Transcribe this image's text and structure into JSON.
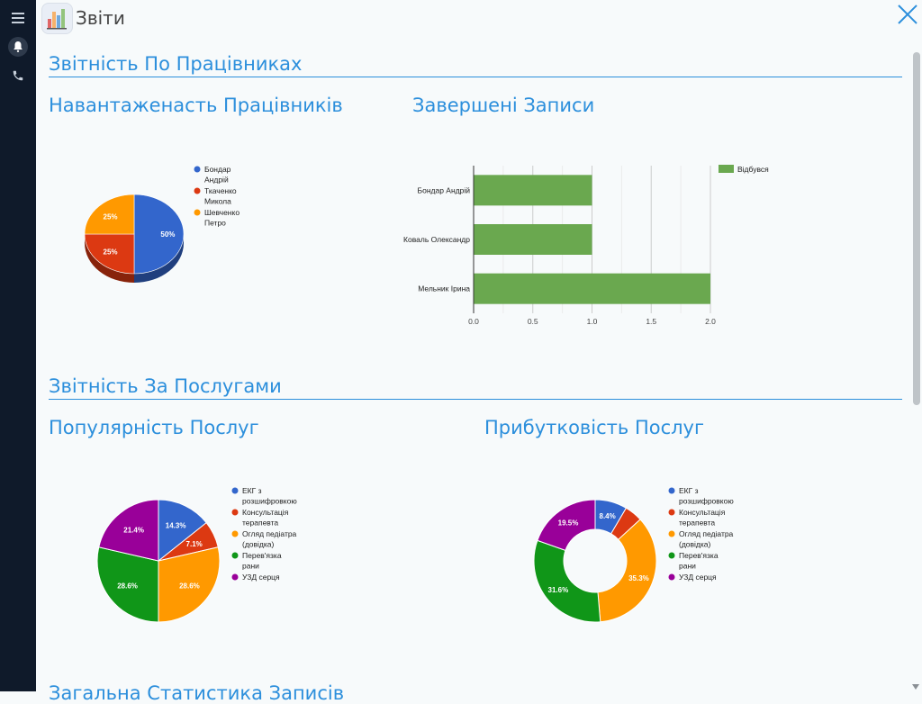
{
  "app": {
    "title": "Звіти"
  },
  "sections": [
    {
      "title": "Звітність По Працівниках"
    },
    {
      "title": "Звітність За Послугами"
    },
    {
      "title": "Загальна Статистика Записів"
    }
  ],
  "charts": {
    "workload": {
      "title": "Навантаженасть Працівників"
    },
    "completed": {
      "title": "Завершені Записи"
    },
    "popularity": {
      "title": "Популярність Послуг"
    },
    "profitability": {
      "title": "Прибутковість Послуг"
    }
  },
  "chart_data": [
    {
      "type": "pie",
      "title": "Навантаженасть Працівників",
      "legend_position": "right",
      "labels": [
        "Бондар Андрій",
        "Ткаченко Микола",
        "Шевченко Петро"
      ],
      "values": [
        50,
        25,
        25
      ],
      "value_labels": [
        "50%",
        "25%",
        "25%"
      ],
      "colors": [
        "#3366cc",
        "#dc3912",
        "#ff9900"
      ]
    },
    {
      "type": "bar",
      "orientation": "horizontal",
      "title": "Завершені Записи",
      "categories": [
        "Бондар Андрій",
        "Коваль Олександр",
        "Мельник Ірина"
      ],
      "series": [
        {
          "name": "Відбувся",
          "values": [
            1,
            1,
            2
          ]
        }
      ],
      "xlim": [
        0,
        2
      ],
      "xticks": [
        "0.0",
        "0.5",
        "1.0",
        "1.5",
        "2.0"
      ],
      "colors": [
        "#6aa84f"
      ],
      "legend_position": "top-right",
      "grid": true
    },
    {
      "type": "pie",
      "title": "Популярність Послуг",
      "legend_position": "right",
      "labels": [
        "ЕКГ з розшифровкою",
        "Консультація терапевта",
        "Огляд педіатра (довідка)",
        "Перев'язка рани",
        "УЗД серця"
      ],
      "values": [
        14.3,
        7.1,
        28.6,
        28.6,
        21.4
      ],
      "value_labels": [
        "14.3%",
        "7.1%",
        "28.6%",
        "28.6%",
        "21.4%"
      ],
      "colors": [
        "#3366cc",
        "#dc3912",
        "#ff9900",
        "#109618",
        "#990099"
      ]
    },
    {
      "type": "pie",
      "donut": true,
      "title": "Прибутковість Послуг",
      "legend_position": "right",
      "labels": [
        "ЕКГ з розшифровкою",
        "Консультація терапевта",
        "Огляд педіатра (довідка)",
        "Перев'язка рани",
        "УЗД серця"
      ],
      "values": [
        8.4,
        4.7,
        35.3,
        31.6,
        19.5
      ],
      "value_labels": [
        "8.4%",
        "",
        "35.3%",
        "31.6%",
        "19.5%"
      ],
      "colors": [
        "#3366cc",
        "#dc3912",
        "#ff9900",
        "#109618",
        "#990099"
      ]
    }
  ]
}
